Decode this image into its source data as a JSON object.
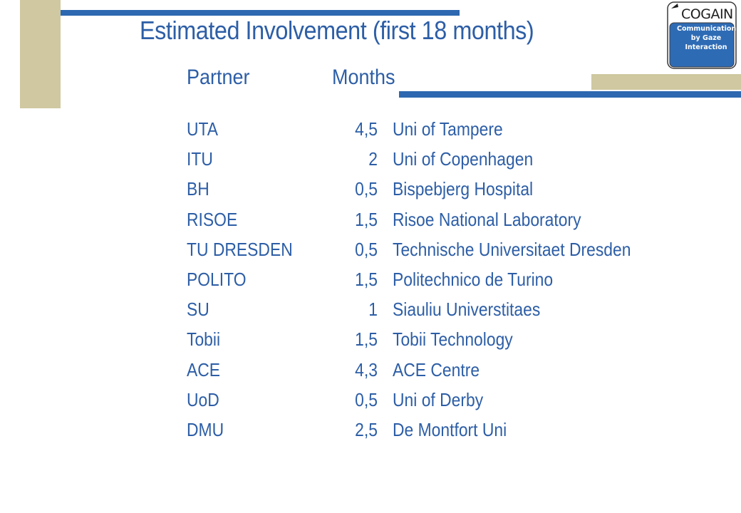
{
  "title": "Estimated Involvement (first 18 months)",
  "logo": {
    "name": "COGAIN",
    "tagline": [
      "Communication",
      "by Gaze",
      "Interaction"
    ]
  },
  "table": {
    "headers": {
      "partner": "Partner",
      "months": "Months"
    },
    "rows": [
      {
        "partner": "UTA",
        "months": "4,5",
        "institution": "Uni of Tampere"
      },
      {
        "partner": "ITU",
        "months": "2",
        "institution": "Uni of Copenhagen"
      },
      {
        "partner": "BH",
        "months": "0,5",
        "institution": "Bispebjerg Hospital"
      },
      {
        "partner": "RISOE",
        "months": "1,5",
        "institution": "Risoe National Laboratory"
      },
      {
        "partner": "TU DRESDEN",
        "months": "0,5",
        "institution": "Technische Universitaet Dresden"
      },
      {
        "partner": "POLITO",
        "months": "1,5",
        "institution": "Politechnico de Turino"
      },
      {
        "partner": "SU",
        "months": "1",
        "institution": "Siauliu Universtitaes"
      },
      {
        "partner": "Tobii",
        "months": "1,5",
        "institution": "Tobii Technology"
      },
      {
        "partner": "ACE",
        "months": "4,3",
        "institution": "ACE Centre"
      },
      {
        "partner": "UoD",
        "months": "0,5",
        "institution": "Uni of Derby"
      },
      {
        "partner": "DMU",
        "months": "2,5",
        "institution": "De Montfort Uni"
      }
    ]
  },
  "colors": {
    "accent_blue": "#2d68b0",
    "text_blue": "#2d5ea6",
    "khaki": "#cfc8a0",
    "logo_blue": "#2e6bb5"
  }
}
